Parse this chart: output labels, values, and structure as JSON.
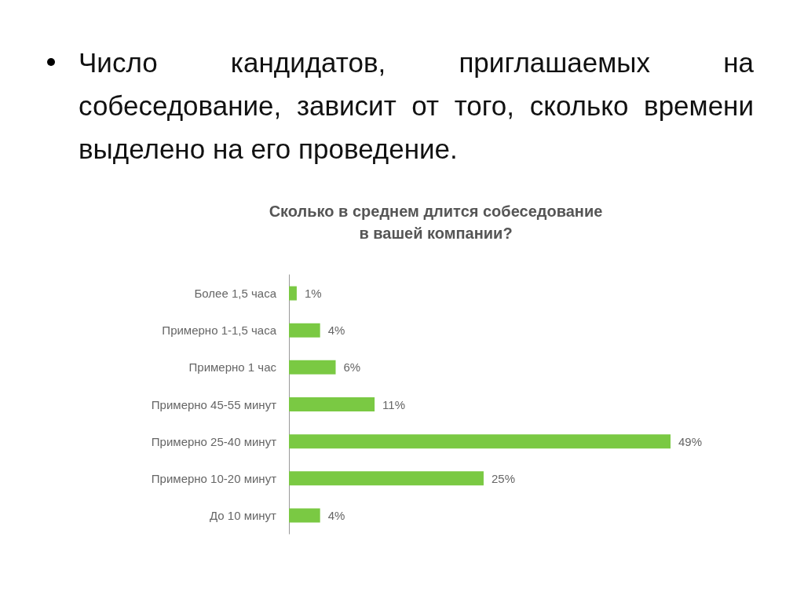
{
  "chart_data": {
    "type": "bar",
    "orientation": "horizontal",
    "title": "Число кандидатов, приглашаемых на собеседование, зависит от того, сколько времени выделено на его проведение.",
    "subtitle": "Сколько в среднем длится собеседование\nв вашей компании?",
    "categories": [
      "Более 1,5 часа",
      "Примерно 1-1,5 часа",
      "Примерно 1 час",
      "Примерно 45-55 минут",
      "Примерно 25-40 минут",
      "Примерно 10-20 минут",
      "До 10 минут"
    ],
    "values": [
      1,
      4,
      6,
      11,
      49,
      25,
      4
    ],
    "value_labels": [
      "1%",
      "4%",
      "6%",
      "11%",
      "49%",
      "25%",
      "4%"
    ],
    "color": "#7ac943"
  }
}
